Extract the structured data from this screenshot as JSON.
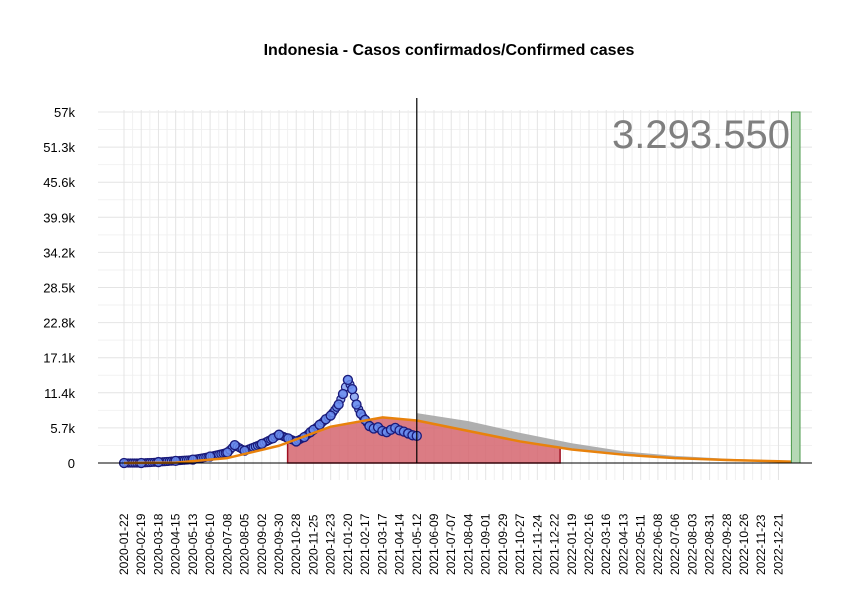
{
  "chart_data": {
    "type": "scatter",
    "title": "Indonesia - Casos confirmados/Confirmed cases",
    "total_label": "3.293.550",
    "xlabel": "",
    "ylabel": "",
    "ylim": [
      0,
      57000
    ],
    "y_ticks": [
      "0",
      "5.7k",
      "11.4k",
      "17.1k",
      "22.8k",
      "28.5k",
      "34.2k",
      "39.9k",
      "45.6k",
      "51.3k",
      "57k"
    ],
    "x_range": [
      "2020-01-22",
      "2023-01-25"
    ],
    "x_ticks": [
      "2020-01-22",
      "2020-02-19",
      "2020-03-18",
      "2020-04-15",
      "2020-05-13",
      "2020-06-10",
      "2020-07-08",
      "2020-08-05",
      "2020-09-02",
      "2020-09-30",
      "2020-10-28",
      "2020-11-25",
      "2020-12-23",
      "2021-01-20",
      "2021-02-17",
      "2021-03-17",
      "2021-04-14",
      "2021-05-12",
      "2021-06-09",
      "2021-07-07",
      "2021-08-04",
      "2021-09-01",
      "2021-09-29",
      "2021-10-27",
      "2021-11-24",
      "2021-12-22",
      "2022-01-19",
      "2022-02-16",
      "2022-03-16",
      "2022-04-13",
      "2022-05-11",
      "2022-06-08",
      "2022-07-06",
      "2022-08-03",
      "2022-08-31",
      "2022-09-28",
      "2022-10-26",
      "2022-11-23",
      "2022-12-21"
    ],
    "grid": true,
    "cutoff_date": "2021-05-12",
    "observed_series": {
      "x": [
        "2020-01-22",
        "2020-02-19",
        "2020-03-18",
        "2020-04-15",
        "2020-05-13",
        "2020-06-10",
        "2020-07-08",
        "2020-07-20",
        "2020-08-05",
        "2020-09-02",
        "2020-09-20",
        "2020-09-30",
        "2020-10-15",
        "2020-10-28",
        "2020-11-10",
        "2020-11-20",
        "2020-11-25",
        "2020-12-05",
        "2020-12-15",
        "2020-12-23",
        "2021-01-05",
        "2021-01-12",
        "2021-01-20",
        "2021-01-27",
        "2021-02-03",
        "2021-02-10",
        "2021-02-17",
        "2021-02-24",
        "2021-03-03",
        "2021-03-10",
        "2021-03-17",
        "2021-03-24",
        "2021-03-31",
        "2021-04-07",
        "2021-04-14",
        "2021-04-21",
        "2021-04-28",
        "2021-05-05",
        "2021-05-12"
      ],
      "y": [
        0,
        0,
        150,
        350,
        550,
        1050,
        1700,
        2900,
        2000,
        3100,
        4000,
        4600,
        4000,
        3500,
        4200,
        5000,
        5400,
        6200,
        7100,
        7700,
        9500,
        11200,
        13500,
        12000,
        9500,
        8000,
        7000,
        6000,
        5600,
        5800,
        5200,
        5000,
        5400,
        5700,
        5300,
        5100,
        4800,
        4500,
        4400
      ]
    },
    "fit_line": {
      "x": [
        "2020-01-22",
        "2020-04-15",
        "2020-07-08",
        "2020-09-30",
        "2020-12-23",
        "2021-03-17",
        "2021-05-12",
        "2021-08-04",
        "2021-10-27",
        "2022-01-19",
        "2022-04-13",
        "2022-07-06",
        "2022-09-28",
        "2022-12-21",
        "2023-01-11"
      ],
      "y": [
        0,
        60,
        800,
        2800,
        5900,
        7400,
        6900,
        5200,
        3500,
        2200,
        1350,
        800,
        480,
        280,
        230
      ]
    },
    "projection_band": {
      "x": [
        "2021-05-12",
        "2021-08-04",
        "2021-10-27",
        "2022-01-19",
        "2022-04-13",
        "2022-07-06",
        "2022-09-28",
        "2022-12-21",
        "2023-01-11"
      ],
      "upper": [
        8100,
        6800,
        4900,
        3200,
        1900,
        1150,
        700,
        400,
        330
      ],
      "lower": [
        6900,
        5200,
        3500,
        2200,
        1350,
        800,
        480,
        280,
        230
      ]
    },
    "shaded_period": {
      "x_start": "2020-10-14",
      "x_end": "2021-12-31",
      "curve": {
        "x": [
          "2020-10-14",
          "2020-12-23",
          "2021-03-17",
          "2021-05-12",
          "2021-08-04",
          "2021-10-27",
          "2021-12-31"
        ],
        "y": [
          3600,
          5900,
          7400,
          6900,
          5200,
          3500,
          2600
        ]
      }
    },
    "total_bar": {
      "x_start": "2023-01-11",
      "x_end": "2023-01-25",
      "y": 57000
    },
    "colors": {
      "points": "#6b8ef0",
      "points_edge": "#1a1a7a",
      "fit_line": "#e8820c",
      "shaded_fill": "#d5656f",
      "shaded_edge": "#9e0f21",
      "band": "#a6a6a6",
      "total_bar": "#b5d8b5",
      "total_bar_edge": "#4a9a4a",
      "cutoff_line": "#000000"
    }
  }
}
